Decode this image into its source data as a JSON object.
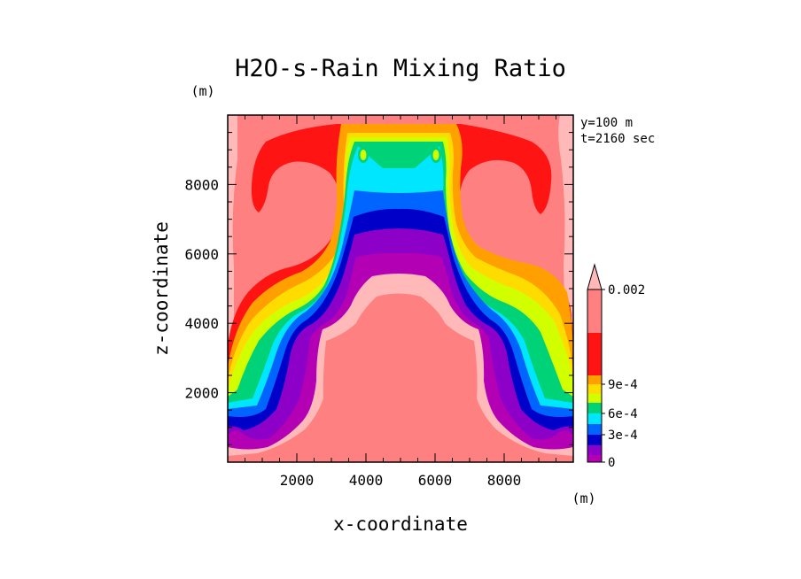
{
  "chart_data": {
    "type": "heatmap",
    "title": "H2O-s-Rain Mixing Ratio",
    "xlabel": "x-coordinate",
    "ylabel": "z-coordinate",
    "x_unit": "(m)",
    "y_unit": "(m)",
    "annotations": [
      "y=100 m",
      "t=2160 sec"
    ],
    "xlim": [
      0,
      10000
    ],
    "ylim": [
      0,
      10000
    ],
    "x_ticks": [
      2000,
      4000,
      6000,
      8000
    ],
    "y_ticks": [
      2000,
      4000,
      6000,
      8000
    ],
    "x_tick_labels": [
      "2000",
      "4000",
      "6000",
      "8000"
    ],
    "y_tick_labels": [
      "2000",
      "4000",
      "6000",
      "8000"
    ],
    "colorbar": {
      "levels": [
        0,
        0.00015,
        0.0003,
        0.00045,
        0.0006,
        0.00075,
        0.0009,
        0.001,
        0.0015,
        0.002
      ],
      "colors": [
        "#b400b4",
        "#8c00c8",
        "#0000c8",
        "#0064ff",
        "#00e6ff",
        "#00d278",
        "#d2ff00",
        "#ffdc00",
        "#ffa000",
        "#ff1414",
        "#ff8080",
        "#ffb9b9"
      ],
      "labels": [
        {
          "value": 0,
          "text": "0"
        },
        {
          "value": 0.0003,
          "text": "3e-4"
        },
        {
          "value": 0.0006,
          "text": "6e-4"
        },
        {
          "value": 0.0009,
          "text": "9e-4"
        },
        {
          "value": 0.002,
          "text": "0.002"
        }
      ],
      "extend": "max"
    },
    "contour_bands": [
      {
        "level": "background",
        "color": "#ffb9b9"
      },
      {
        "level": "> 0.002",
        "color": "#ff8080"
      },
      {
        "level": "0.0015–0.002",
        "color": "#ff1414"
      },
      {
        "level": "0.001–0.0015",
        "color": "#ffa000"
      },
      {
        "level": "0.0009–0.001",
        "color": "#ffdc00"
      },
      {
        "level": "0.00075–0.0009",
        "color": "#d2ff00"
      },
      {
        "level": "0.0006–0.00075",
        "color": "#00d278"
      },
      {
        "level": "0.00045–0.0006",
        "color": "#00e6ff"
      },
      {
        "level": "0.0003–0.00045",
        "color": "#0064ff"
      },
      {
        "level": "0.00015–0.0003",
        "color": "#0000c8"
      },
      {
        "level": "0–0.00015",
        "color": "#8c00c8"
      },
      {
        "level": "0",
        "color": "#b400b4"
      }
    ]
  }
}
